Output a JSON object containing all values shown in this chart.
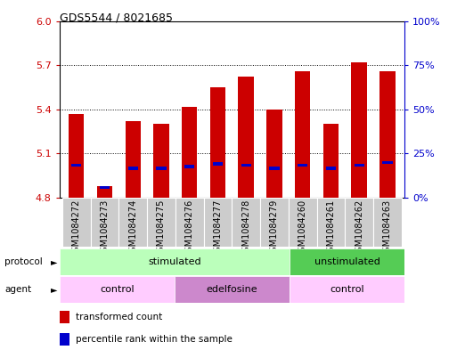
{
  "title": "GDS5544 / 8021685",
  "samples": [
    "GSM1084272",
    "GSM1084273",
    "GSM1084274",
    "GSM1084275",
    "GSM1084276",
    "GSM1084277",
    "GSM1084278",
    "GSM1084279",
    "GSM1084260",
    "GSM1084261",
    "GSM1084262",
    "GSM1084263"
  ],
  "red_values": [
    5.37,
    4.88,
    5.32,
    5.3,
    5.42,
    5.55,
    5.62,
    5.4,
    5.66,
    5.3,
    5.72,
    5.66
  ],
  "blue_values": [
    5.02,
    4.87,
    5.0,
    5.0,
    5.01,
    5.03,
    5.02,
    5.0,
    5.02,
    5.0,
    5.02,
    5.04
  ],
  "ymin": 4.8,
  "ymax": 6.0,
  "yticks": [
    4.8,
    5.1,
    5.4,
    5.7,
    6.0
  ],
  "right_yticks_pct": [
    0,
    25,
    50,
    75,
    100
  ],
  "right_yticklabels": [
    "0%",
    "25%",
    "50%",
    "75%",
    "100%"
  ],
  "left_tick_color": "#cc0000",
  "right_tick_color": "#0000cc",
  "protocol_groups": [
    {
      "label": "stimulated",
      "start": 0,
      "end": 8,
      "color": "#bbffbb"
    },
    {
      "label": "unstimulated",
      "start": 8,
      "end": 12,
      "color": "#55cc55"
    }
  ],
  "agent_groups": [
    {
      "label": "control",
      "start": 0,
      "end": 4,
      "color": "#ffccff"
    },
    {
      "label": "edelfosine",
      "start": 4,
      "end": 8,
      "color": "#cc88cc"
    },
    {
      "label": "control",
      "start": 8,
      "end": 12,
      "color": "#ffccff"
    }
  ],
  "bar_color": "#cc0000",
  "blue_color": "#0000cc",
  "bar_width": 0.55,
  "blue_bar_width": 0.35,
  "blue_bar_height": 0.022,
  "legend_items": [
    "transformed count",
    "percentile rank within the sample"
  ],
  "x_tick_label_size": 7,
  "sample_box_color": "#cccccc"
}
